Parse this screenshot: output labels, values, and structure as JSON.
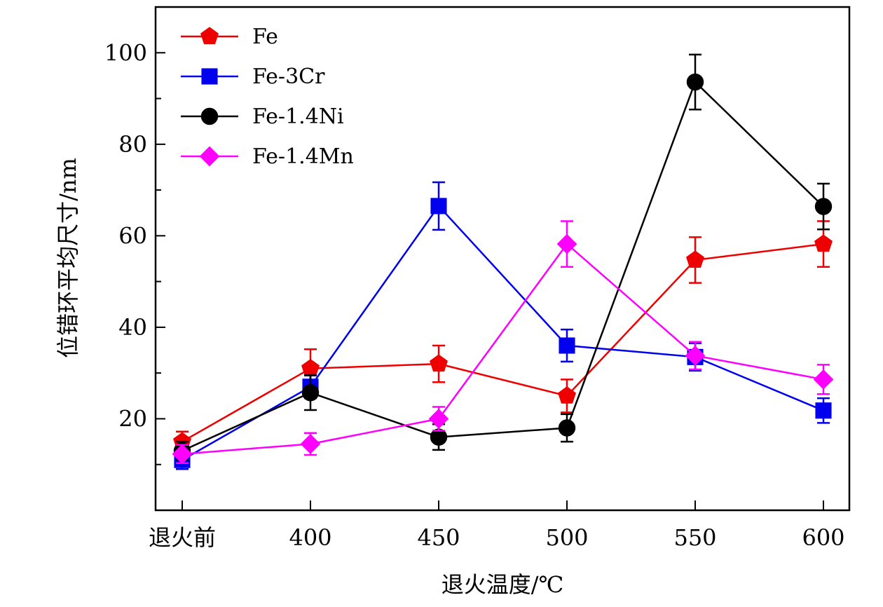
{
  "chart_data": {
    "type": "line",
    "title": "",
    "xlabel": "退火温度/℃",
    "ylabel": "位错环平均尺寸/nm",
    "categories": [
      "退火前",
      "400",
      "450",
      "500",
      "550",
      "600"
    ],
    "ylim": [
      0,
      110
    ],
    "yticks": [
      20,
      40,
      60,
      80,
      100
    ],
    "grid": false,
    "legend_position": "top-left",
    "series": [
      {
        "name": "Fe",
        "color": "#ee0000",
        "marker": "pentagon",
        "values": [
          15,
          31,
          32,
          25,
          54.7,
          58.2
        ],
        "errors": [
          2.2,
          4.2,
          4.0,
          3.6,
          5.0,
          5.0
        ]
      },
      {
        "name": "Fe-3Cr",
        "color": "#0000ee",
        "marker": "square",
        "values": [
          11,
          27,
          66.5,
          36,
          33.5,
          21.8
        ],
        "errors": [
          2.0,
          2.5,
          5.2,
          3.5,
          3.0,
          2.7
        ]
      },
      {
        "name": "Fe-1.4Ni",
        "color": "#000000",
        "marker": "circle",
        "values": [
          13,
          25.7,
          16,
          18,
          93.6,
          66.4
        ],
        "errors": [
          2.0,
          3.8,
          2.8,
          3.0,
          6.0,
          5.0
        ]
      },
      {
        "name": "Fe-1.4Mn",
        "color": "#ff00ff",
        "marker": "diamond",
        "values": [
          12.3,
          14.5,
          20,
          58.2,
          33.8,
          28.6
        ],
        "errors": [
          2.0,
          2.4,
          2.6,
          5.0,
          3.0,
          3.2
        ]
      }
    ]
  }
}
